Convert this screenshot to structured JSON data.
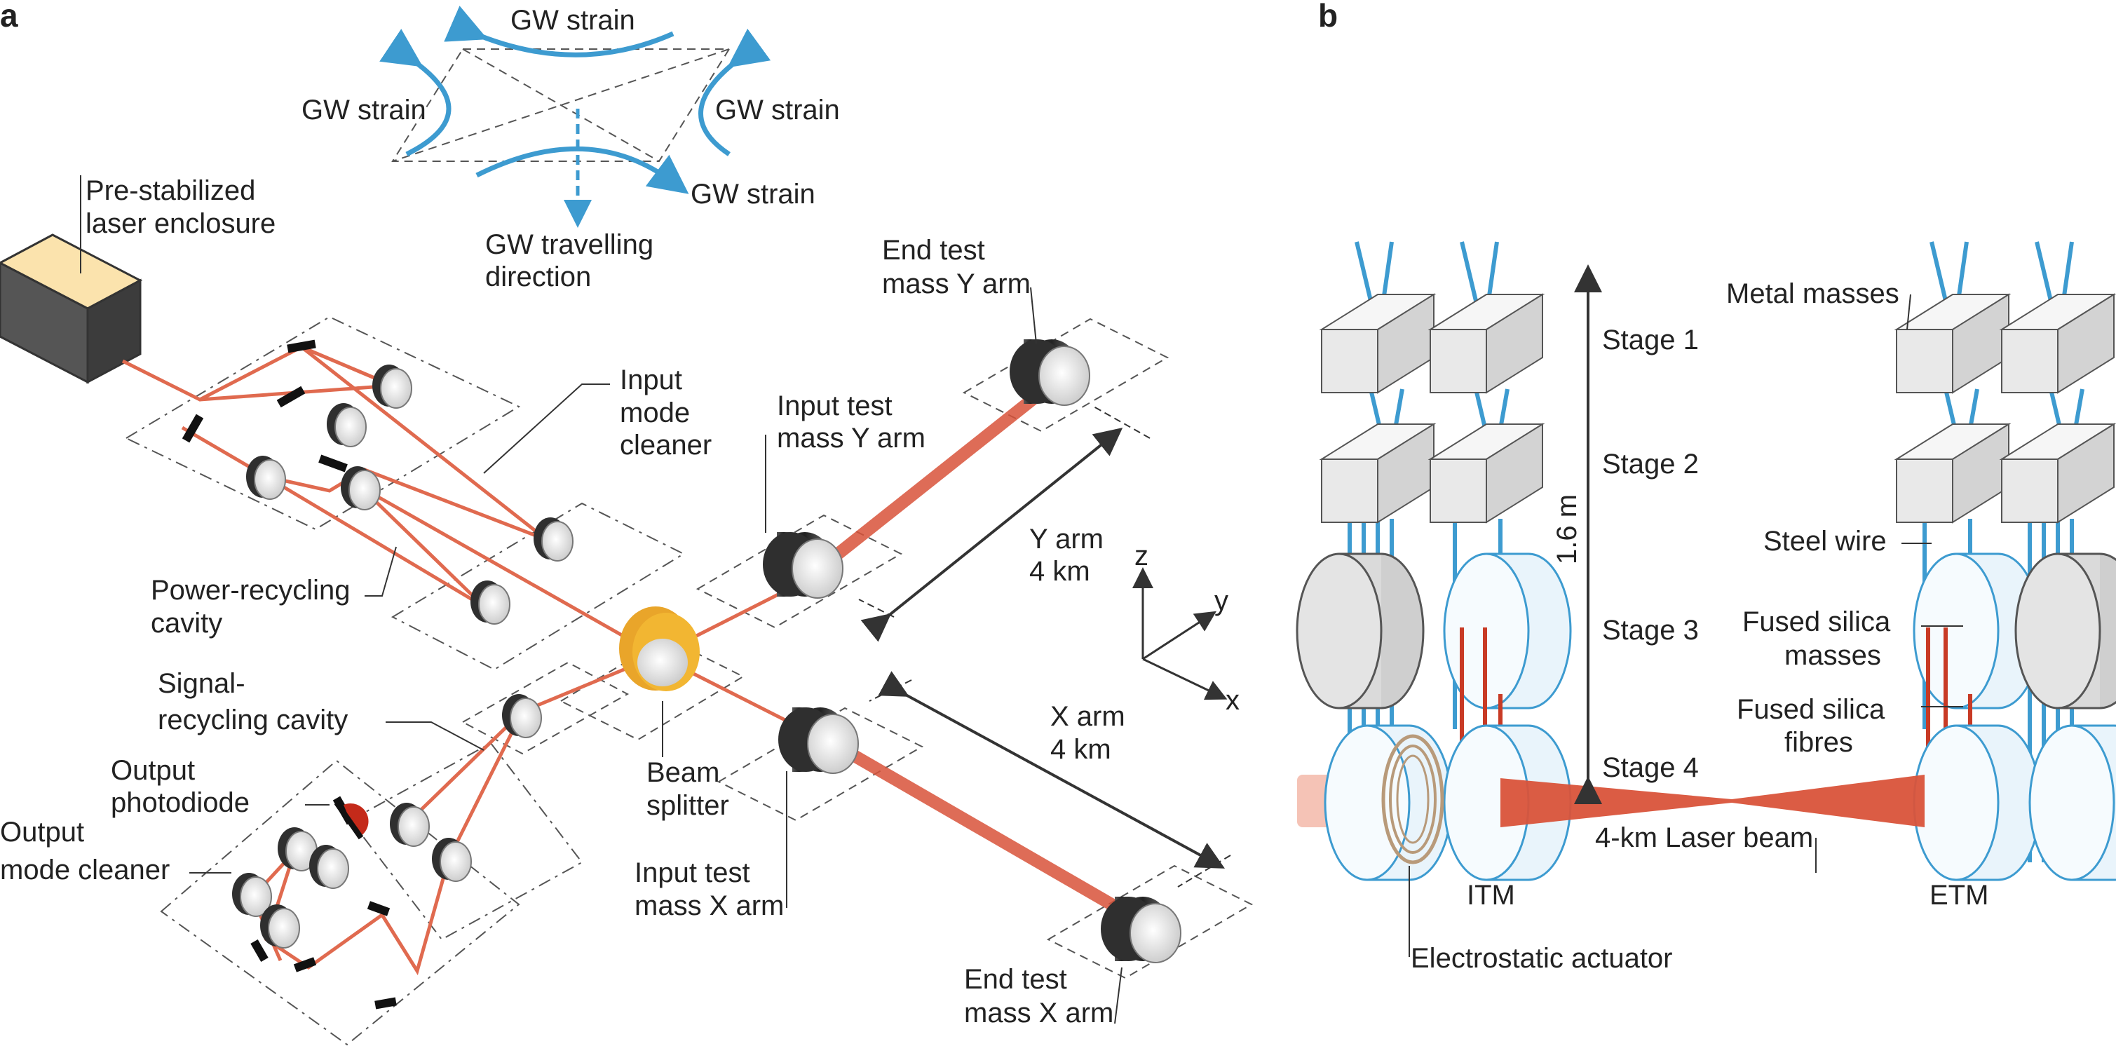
{
  "panels": {
    "a": "a",
    "b": "b"
  },
  "gw": {
    "strain_top": "GW strain",
    "strain_left": "GW strain",
    "strain_right": "GW strain",
    "strain_bottom": "GW strain",
    "direction_1": "GW travelling",
    "direction_2": "direction"
  },
  "interferometer": {
    "laser_1": "Pre-stabilized",
    "laser_2": "laser enclosure",
    "imc_1": "Input",
    "imc_2": "mode",
    "imc_3": "cleaner",
    "prc_1": "Power-recycling",
    "prc_2": "cavity",
    "src_1": "Signal-",
    "src_2": "recycling cavity",
    "pd_1": "Output",
    "pd_2": "photodiode",
    "omc_1": "Output",
    "omc_2": "mode cleaner",
    "bs_1": "Beam",
    "bs_2": "splitter",
    "itmy_1": "Input test",
    "itmy_2": "mass Y arm",
    "etmy_1": "End test",
    "etmy_2": "mass Y arm",
    "itmx_1": "Input test",
    "itmx_2": "mass X arm",
    "etmx_1": "End test",
    "etmx_2": "mass X arm",
    "yarm_1": "Y arm",
    "yarm_2": "4 km",
    "xarm_1": "X arm",
    "xarm_2": "4 km",
    "axis_z": "z",
    "axis_y": "y",
    "axis_x": "x"
  },
  "suspension": {
    "stage1": "Stage 1",
    "stage2": "Stage 2",
    "stage3": "Stage 3",
    "stage4": "Stage 4",
    "height": "1.6 m",
    "metal_masses": "Metal masses",
    "steel_wire": "Steel wire",
    "fs_masses_1": "Fused silica",
    "fs_masses_2": "masses",
    "fs_fibres_1": "Fused silica",
    "fs_fibres_2": "fibres",
    "laser_beam": "4-km Laser beam",
    "itm": "ITM",
    "etm": "ETM",
    "actuator": "Electrostatic actuator"
  },
  "colors": {
    "laser": "#d9533a",
    "wire": "#3d9bd0",
    "fibre": "#c83a25",
    "beam_splitter": "#f2b632",
    "laser_box_top": "#fbe3ad"
  }
}
